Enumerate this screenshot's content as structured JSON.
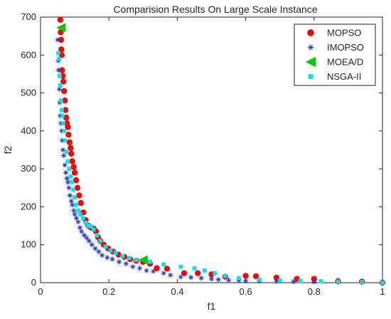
{
  "chart_data": {
    "type": "scatter",
    "title": "Comparision Results On Large Scale Instance",
    "xlabel": "f1",
    "ylabel": "f2",
    "xlim": [
      0,
      1
    ],
    "ylim": [
      0,
      700
    ],
    "xticks": [
      "0",
      "0.2",
      "0.4",
      "0.6",
      "0.8",
      "1"
    ],
    "yticks": [
      "0",
      "100",
      "200",
      "300",
      "400",
      "500",
      "600",
      "700"
    ],
    "grid": false,
    "legend_placement": "top-right",
    "series": [
      {
        "name": "MOPSO",
        "color": "#ff0000",
        "marker": "circle",
        "points": [
          [
            0.058,
            693
          ],
          [
            0.059,
            660
          ],
          [
            0.06,
            640
          ],
          [
            0.061,
            615
          ],
          [
            0.062,
            600
          ],
          [
            0.063,
            560
          ],
          [
            0.065,
            545
          ],
          [
            0.067,
            530
          ],
          [
            0.069,
            505
          ],
          [
            0.071,
            480
          ],
          [
            0.073,
            455
          ],
          [
            0.075,
            435
          ],
          [
            0.077,
            420
          ],
          [
            0.08,
            410
          ],
          [
            0.082,
            390
          ],
          [
            0.085,
            370
          ],
          [
            0.088,
            355
          ],
          [
            0.09,
            340
          ],
          [
            0.093,
            320
          ],
          [
            0.097,
            305
          ],
          [
            0.1,
            290
          ],
          [
            0.104,
            270
          ],
          [
            0.108,
            250
          ],
          [
            0.113,
            230
          ],
          [
            0.118,
            210
          ],
          [
            0.125,
            185
          ],
          [
            0.132,
            165
          ],
          [
            0.14,
            150
          ],
          [
            0.148,
            145
          ],
          [
            0.156,
            142
          ],
          [
            0.162,
            135
          ],
          [
            0.168,
            120
          ],
          [
            0.175,
            110
          ],
          [
            0.185,
            100
          ],
          [
            0.198,
            90
          ],
          [
            0.212,
            82
          ],
          [
            0.228,
            74
          ],
          [
            0.245,
            68
          ],
          [
            0.262,
            62
          ],
          [
            0.28,
            58
          ],
          [
            0.3,
            55
          ],
          [
            0.32,
            50
          ],
          [
            0.34,
            38
          ],
          [
            0.37,
            37
          ],
          [
            0.42,
            25
          ],
          [
            0.46,
            25
          ],
          [
            0.5,
            22
          ],
          [
            0.54,
            16
          ],
          [
            0.6,
            18
          ],
          [
            0.63,
            17
          ],
          [
            0.69,
            13
          ],
          [
            0.75,
            10
          ],
          [
            0.8,
            10
          ],
          [
            0.87,
            4
          ],
          [
            0.94,
            3
          ],
          [
            1.0,
            0
          ]
        ]
      },
      {
        "name": "IMOPSO",
        "color": "#2233dd",
        "marker": "asterisk",
        "points": [
          [
            0.05,
            640
          ],
          [
            0.052,
            585
          ],
          [
            0.053,
            560
          ],
          [
            0.055,
            510
          ],
          [
            0.056,
            475
          ],
          [
            0.058,
            440
          ],
          [
            0.06,
            420
          ],
          [
            0.062,
            400
          ],
          [
            0.064,
            375
          ],
          [
            0.066,
            350
          ],
          [
            0.068,
            335
          ],
          [
            0.071,
            310
          ],
          [
            0.074,
            290
          ],
          [
            0.077,
            275
          ],
          [
            0.08,
            265
          ],
          [
            0.083,
            250
          ],
          [
            0.086,
            230
          ],
          [
            0.09,
            215
          ],
          [
            0.093,
            205
          ],
          [
            0.097,
            190
          ],
          [
            0.1,
            180
          ],
          [
            0.105,
            170
          ],
          [
            0.11,
            160
          ],
          [
            0.115,
            145
          ],
          [
            0.12,
            135
          ],
          [
            0.128,
            125
          ],
          [
            0.135,
            118
          ],
          [
            0.142,
            110
          ],
          [
            0.15,
            100
          ],
          [
            0.16,
            90
          ],
          [
            0.17,
            82
          ],
          [
            0.18,
            72
          ],
          [
            0.195,
            66
          ],
          [
            0.21,
            62
          ],
          [
            0.23,
            55
          ],
          [
            0.25,
            50
          ],
          [
            0.27,
            42
          ],
          [
            0.29,
            38
          ],
          [
            0.31,
            32
          ],
          [
            0.33,
            30
          ],
          [
            0.36,
            25
          ],
          [
            0.38,
            20
          ],
          [
            0.41,
            15
          ],
          [
            0.44,
            14
          ],
          [
            0.47,
            12
          ],
          [
            0.5,
            10
          ],
          [
            0.52,
            8
          ],
          [
            0.55,
            7
          ],
          [
            0.58,
            6
          ],
          [
            0.6,
            5
          ],
          [
            0.64,
            5
          ],
          [
            0.69,
            4
          ],
          [
            0.74,
            3
          ],
          [
            0.8,
            2
          ],
          [
            0.87,
            2
          ],
          [
            0.94,
            1
          ],
          [
            1.0,
            0
          ]
        ]
      },
      {
        "name": "MOEA/D",
        "color": "#00cc00",
        "marker": "triangle-left",
        "points": [
          [
            0.06,
            672
          ],
          [
            0.3,
            60
          ]
        ]
      },
      {
        "name": "NSGA-II",
        "color": "#00e5ee",
        "marker": "square",
        "points": [
          [
            0.052,
            605
          ],
          [
            0.054,
            590
          ],
          [
            0.056,
            545
          ],
          [
            0.058,
            520
          ],
          [
            0.06,
            480
          ],
          [
            0.062,
            455
          ],
          [
            0.064,
            440
          ],
          [
            0.066,
            420
          ],
          [
            0.069,
            400
          ],
          [
            0.072,
            375
          ],
          [
            0.076,
            345
          ],
          [
            0.08,
            320
          ],
          [
            0.084,
            300
          ],
          [
            0.088,
            280
          ],
          [
            0.092,
            265
          ],
          [
            0.096,
            245
          ],
          [
            0.1,
            225
          ],
          [
            0.104,
            205
          ],
          [
            0.11,
            190
          ],
          [
            0.116,
            180
          ],
          [
            0.124,
            170
          ],
          [
            0.132,
            158
          ],
          [
            0.14,
            150
          ],
          [
            0.148,
            148
          ],
          [
            0.155,
            140
          ],
          [
            0.165,
            125
          ],
          [
            0.175,
            110
          ],
          [
            0.19,
            95
          ],
          [
            0.205,
            85
          ],
          [
            0.22,
            78
          ],
          [
            0.24,
            70
          ],
          [
            0.26,
            65
          ],
          [
            0.28,
            60
          ],
          [
            0.32,
            55
          ],
          [
            0.36,
            48
          ],
          [
            0.41,
            42
          ],
          [
            0.45,
            38
          ],
          [
            0.48,
            32
          ],
          [
            0.51,
            25
          ],
          [
            0.54,
            18
          ],
          [
            0.58,
            12
          ],
          [
            0.64,
            8
          ],
          [
            0.7,
            6
          ],
          [
            0.76,
            5
          ],
          [
            0.82,
            4
          ],
          [
            0.87,
            3
          ],
          [
            0.94,
            2
          ],
          [
            1.0,
            0
          ]
        ]
      }
    ]
  }
}
